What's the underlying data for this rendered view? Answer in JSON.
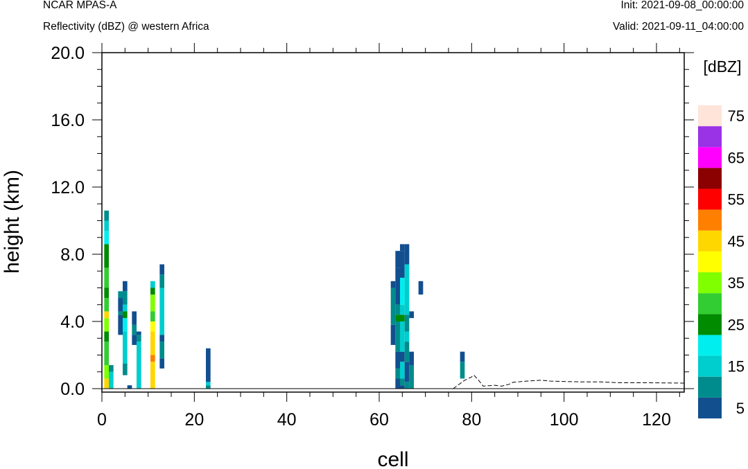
{
  "header": {
    "model": "NCAR MPAS-A",
    "field": "Reflectivity (dBZ) @ western Africa",
    "init": "Init: 2021-09-08_00:00:00",
    "valid": "Valid: 2021-09-11_04:00:00"
  },
  "chart_data": {
    "type": "heatmap",
    "title": "NCAR MPAS-A",
    "subtitle": "Reflectivity (dBZ) @ western Africa",
    "xlabel": "cell",
    "ylabel": "height (km)",
    "xlim": [
      0,
      126
    ],
    "ylim": [
      0,
      20
    ],
    "xticks": [
      0,
      20,
      40,
      60,
      80,
      100,
      120
    ],
    "yticks": [
      0,
      4,
      8,
      12,
      16,
      20
    ],
    "ytick_labels": [
      "0.0",
      "4.0",
      "8.0",
      "12.0",
      "16.0",
      "20.0"
    ],
    "colorbar": {
      "unit_label": "[dBZ]",
      "levels": [
        5,
        10,
        15,
        20,
        25,
        30,
        35,
        40,
        45,
        50,
        55,
        60,
        65,
        70,
        75
      ],
      "tick_labels": [
        "5",
        "15",
        "25",
        "35",
        "45",
        "55",
        "65",
        "75"
      ],
      "colors": [
        "#124f8f",
        "#008c8c",
        "#00cdcd",
        "#00eeee",
        "#008b00",
        "#32cd32",
        "#7fff00",
        "#ffff00",
        "#ffd700",
        "#ff8000",
        "#ff0000",
        "#8b0000",
        "#ff00ff",
        "#9a32e6",
        "#ffe4da"
      ]
    },
    "columns": [
      {
        "x": 1,
        "cells": [
          [
            0,
            0.6,
            45
          ],
          [
            0.6,
            1.4,
            35
          ],
          [
            1.4,
            2.8,
            30
          ],
          [
            2.8,
            3.4,
            25
          ],
          [
            3.4,
            4.2,
            35
          ],
          [
            4.2,
            4.6,
            45
          ],
          [
            4.6,
            5.4,
            30
          ],
          [
            5.4,
            6.0,
            25
          ],
          [
            6.0,
            7.2,
            30
          ],
          [
            7.2,
            8.6,
            25
          ],
          [
            8.6,
            9.4,
            20
          ],
          [
            9.4,
            10.0,
            15
          ],
          [
            10.0,
            10.6,
            10
          ]
        ]
      },
      {
        "x": 2,
        "cells": [
          [
            0,
            1.0,
            15
          ],
          [
            1.0,
            1.4,
            10
          ]
        ]
      },
      {
        "x": 4,
        "cells": [
          [
            3.2,
            4.4,
            5
          ],
          [
            4.4,
            4.6,
            10
          ],
          [
            4.6,
            5.4,
            5
          ],
          [
            5.4,
            5.8,
            10
          ]
        ]
      },
      {
        "x": 5,
        "cells": [
          [
            0.8,
            1.5,
            10
          ],
          [
            1.5,
            3.4,
            15
          ],
          [
            3.4,
            4.2,
            20
          ],
          [
            4.2,
            4.6,
            25
          ],
          [
            4.6,
            5.0,
            15
          ],
          [
            5.0,
            5.8,
            10
          ],
          [
            5.8,
            6.4,
            5
          ]
        ]
      },
      {
        "x": 6,
        "cells": [
          [
            0,
            0.2,
            5
          ]
        ]
      },
      {
        "x": 7,
        "cells": [
          [
            2.6,
            3.2,
            5
          ],
          [
            3.2,
            3.8,
            10
          ],
          [
            3.8,
            4.6,
            5
          ]
        ]
      },
      {
        "x": 8,
        "cells": [
          [
            0,
            2.8,
            15
          ],
          [
            2.8,
            3.2,
            10
          ],
          [
            3.2,
            3.4,
            5
          ]
        ]
      },
      {
        "x": 11,
        "cells": [
          [
            0,
            1.6,
            45
          ],
          [
            1.6,
            2.0,
            50
          ],
          [
            2.0,
            3.4,
            45
          ],
          [
            3.4,
            4.0,
            40
          ],
          [
            4.0,
            4.6,
            30
          ],
          [
            4.6,
            5.6,
            35
          ],
          [
            5.6,
            6.0,
            25
          ],
          [
            6.0,
            6.4,
            15
          ]
        ]
      },
      {
        "x": 13,
        "cells": [
          [
            1.2,
            1.8,
            5
          ],
          [
            1.8,
            2.8,
            10
          ],
          [
            2.8,
            3.2,
            5
          ],
          [
            3.2,
            6.0,
            15
          ],
          [
            6.0,
            6.8,
            10
          ],
          [
            6.8,
            7.4,
            5
          ]
        ]
      },
      {
        "x": 23,
        "cells": [
          [
            0,
            0.2,
            10
          ],
          [
            0.2,
            0.4,
            15
          ],
          [
            0.4,
            2.4,
            5
          ]
        ]
      },
      {
        "x": 63,
        "cells": [
          [
            2.6,
            3.8,
            5
          ],
          [
            3.8,
            6.0,
            10
          ],
          [
            6.0,
            6.4,
            5
          ]
        ]
      },
      {
        "x": 64,
        "cells": [
          [
            0,
            0.6,
            5
          ],
          [
            0.6,
            1.2,
            10
          ],
          [
            1.2,
            2.2,
            5
          ],
          [
            2.2,
            4.0,
            10
          ],
          [
            4.0,
            4.4,
            25
          ],
          [
            4.4,
            5.0,
            10
          ],
          [
            5.0,
            7.2,
            5
          ],
          [
            7.2,
            8.2,
            5
          ]
        ]
      },
      {
        "x": 65,
        "cells": [
          [
            0,
            0.2,
            5
          ],
          [
            0.2,
            0.6,
            10
          ],
          [
            0.6,
            1.6,
            15
          ],
          [
            1.6,
            2.2,
            5
          ],
          [
            2.2,
            4.0,
            15
          ],
          [
            4.0,
            4.4,
            25
          ],
          [
            4.4,
            5.0,
            15
          ],
          [
            5.0,
            6.6,
            20
          ],
          [
            6.6,
            8.2,
            5
          ],
          [
            8.2,
            8.6,
            5
          ]
        ]
      },
      {
        "x": 66,
        "cells": [
          [
            0,
            0.4,
            10
          ],
          [
            0.4,
            1.6,
            5
          ],
          [
            1.6,
            2.8,
            10
          ],
          [
            2.8,
            3.4,
            15
          ],
          [
            3.4,
            4.4,
            10
          ],
          [
            4.4,
            5.2,
            15
          ],
          [
            5.2,
            7.4,
            15
          ],
          [
            7.4,
            8.6,
            5
          ]
        ]
      },
      {
        "x": 67,
        "cells": [
          [
            0,
            1.4,
            10
          ],
          [
            1.4,
            2.2,
            5
          ],
          [
            4.2,
            4.6,
            5
          ]
        ]
      },
      {
        "x": 69,
        "cells": [
          [
            5.6,
            6.4,
            5
          ]
        ]
      },
      {
        "x": 78,
        "cells": [
          [
            0.6,
            1.6,
            10
          ],
          [
            1.6,
            2.2,
            5
          ]
        ]
      }
    ],
    "terrain": [
      [
        76,
        0
      ],
      [
        77.5,
        0.3
      ],
      [
        78.5,
        0.5
      ],
      [
        80,
        0.7
      ],
      [
        80.5,
        0.8
      ],
      [
        81.5,
        0.5
      ],
      [
        82.5,
        0.15
      ],
      [
        84,
        0.18
      ],
      [
        85,
        0.2
      ],
      [
        86.5,
        0.15
      ],
      [
        88,
        0.25
      ],
      [
        89,
        0.38
      ],
      [
        92,
        0.45
      ],
      [
        95,
        0.5
      ],
      [
        97,
        0.45
      ],
      [
        101,
        0.42
      ],
      [
        104,
        0.4
      ],
      [
        108,
        0.4
      ],
      [
        112,
        0.35
      ],
      [
        118,
        0.35
      ],
      [
        126,
        0.33
      ]
    ]
  }
}
